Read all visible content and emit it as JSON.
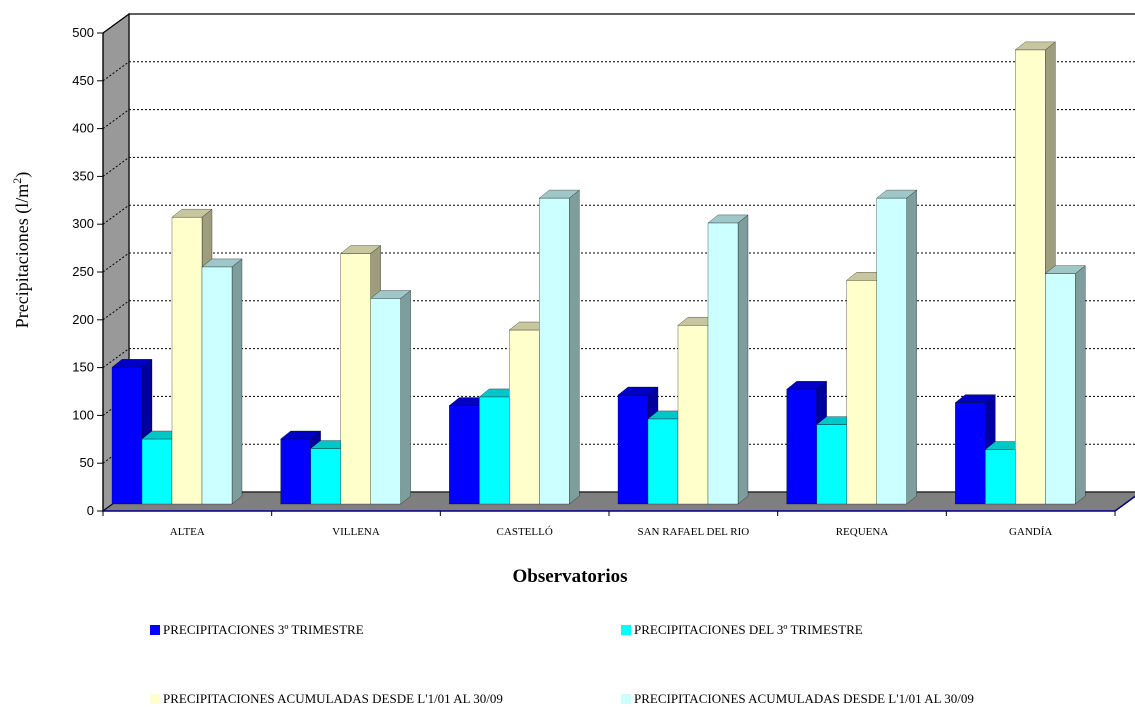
{
  "chart_data": {
    "type": "bar",
    "categories": [
      "ALTEA",
      "VILLENA",
      "CASTELLÓ",
      "SAN RAFAEL DEL RIO",
      "REQUENA",
      "GANDÍA"
    ],
    "series": [
      {
        "name": "PRECIPITACIONES 3º TRIMESTRE",
        "color": "#0000ff",
        "values": [
          143,
          68,
          103,
          114,
          120,
          106
        ]
      },
      {
        "name": "PRECIPITACIONES DEL 3º TRIMESTRE",
        "color": "#00ffff",
        "values": [
          68,
          58,
          112,
          89,
          83,
          57
        ]
      },
      {
        "name": "PRECIPITACIONES ACUMULADAS DESDE L'1/01 AL 30/09",
        "color": "#ffffcc",
        "values": [
          300,
          262,
          182,
          187,
          234,
          475
        ]
      },
      {
        "name": "PRECIPITACIONES ACUMULADAS DESDE L'1/01 AL 30/09",
        "color": "#ccffff",
        "values": [
          248,
          215,
          320,
          294,
          320,
          241
        ]
      }
    ],
    "ylabel_main": "Precipitaciones (l/m",
    "ylabel_sup": "2",
    "ylabel_end": ")",
    "xlabel": "Observatorios",
    "ylim": [
      0,
      500
    ],
    "yticks": [
      "0",
      "50",
      "100",
      "150",
      "200",
      "250",
      "300",
      "350",
      "400",
      "450",
      "500"
    ],
    "grid": true,
    "legend_position": "bottom"
  }
}
